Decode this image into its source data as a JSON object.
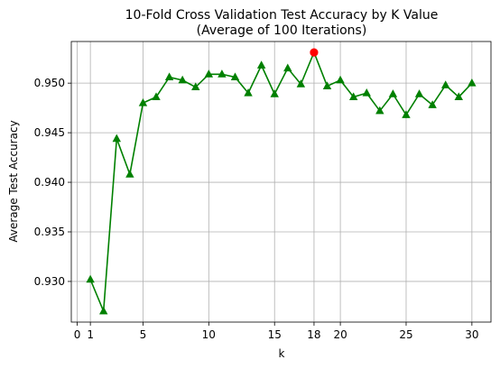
{
  "chart_data": {
    "type": "line",
    "title_line1": "10-Fold Cross Validation Test Accuracy by K Value",
    "title_line2": "(Average of 100 Iterations)",
    "xlabel": "k",
    "ylabel": "Average Test Accuracy",
    "xlim": [
      -0.45,
      31.45
    ],
    "ylim": [
      0.9259,
      0.9542
    ],
    "xticks": [
      0,
      1,
      5,
      10,
      15,
      18,
      20,
      25,
      30
    ],
    "yticks": [
      0.93,
      0.935,
      0.94,
      0.945,
      0.95
    ],
    "ytick_labels": [
      "0.930",
      "0.935",
      "0.940",
      "0.945",
      "0.950"
    ],
    "grid": true,
    "line_color": "#008000",
    "highlight_color": "#ff0000",
    "x": [
      1,
      2,
      3,
      4,
      5,
      6,
      7,
      8,
      9,
      10,
      11,
      12,
      13,
      14,
      15,
      16,
      17,
      18,
      19,
      20,
      21,
      22,
      23,
      24,
      25,
      26,
      27,
      28,
      29,
      30
    ],
    "values": [
      0.9302,
      0.927,
      0.9444,
      0.9408,
      0.948,
      0.9486,
      0.9506,
      0.9503,
      0.9496,
      0.9509,
      0.9509,
      0.9506,
      0.949,
      0.9518,
      0.9489,
      0.9515,
      0.9499,
      0.9531,
      0.9497,
      0.9503,
      0.9486,
      0.949,
      0.9472,
      0.9489,
      0.9468,
      0.9489,
      0.9478,
      0.9498,
      0.9486,
      0.95
    ],
    "highlight": {
      "x": 18,
      "y": 0.9531
    }
  }
}
